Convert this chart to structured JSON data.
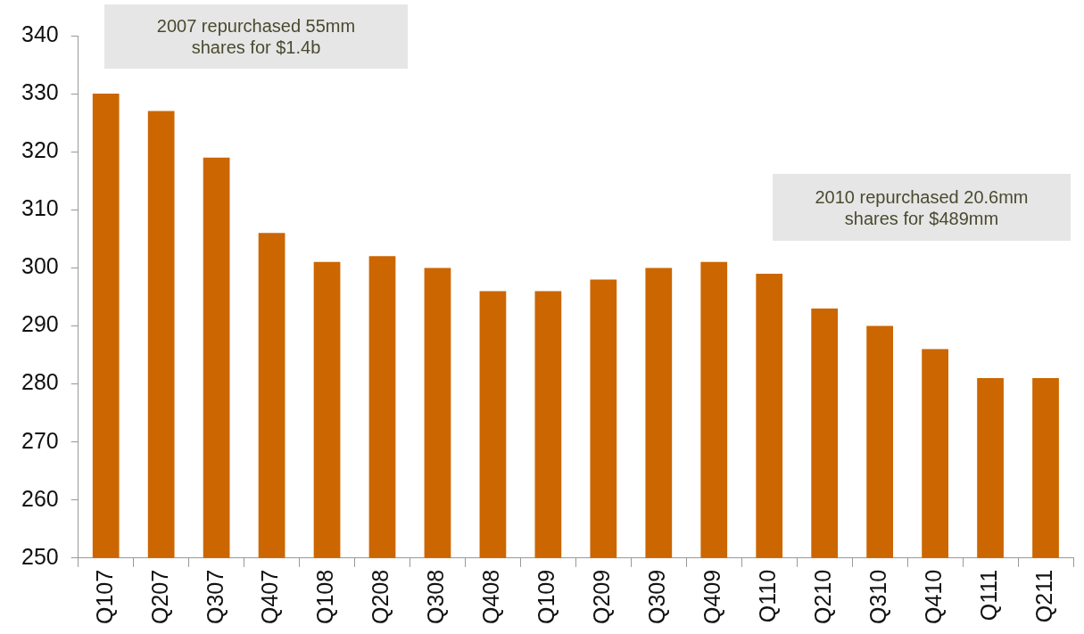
{
  "chart_data": {
    "type": "bar",
    "categories": [
      "Q107",
      "Q207",
      "Q307",
      "Q407",
      "Q108",
      "Q208",
      "Q308",
      "Q408",
      "Q109",
      "Q209",
      "Q309",
      "Q409",
      "Q110",
      "Q210",
      "Q310",
      "Q410",
      "Q111",
      "Q211"
    ],
    "values": [
      330,
      327,
      319,
      306,
      301,
      302,
      300,
      296,
      296,
      298,
      300,
      301,
      299,
      293,
      290,
      286,
      281,
      281
    ],
    "color": "#cc6600",
    "ylim": [
      250,
      340
    ],
    "yticks": [
      250,
      260,
      270,
      280,
      290,
      300,
      310,
      320,
      330,
      340
    ],
    "grid": false,
    "legend": false,
    "annotations": [
      "2007 repurchased 55mm shares for $1.4b",
      "2010 repurchased 20.6mm shares for $489mm"
    ]
  }
}
